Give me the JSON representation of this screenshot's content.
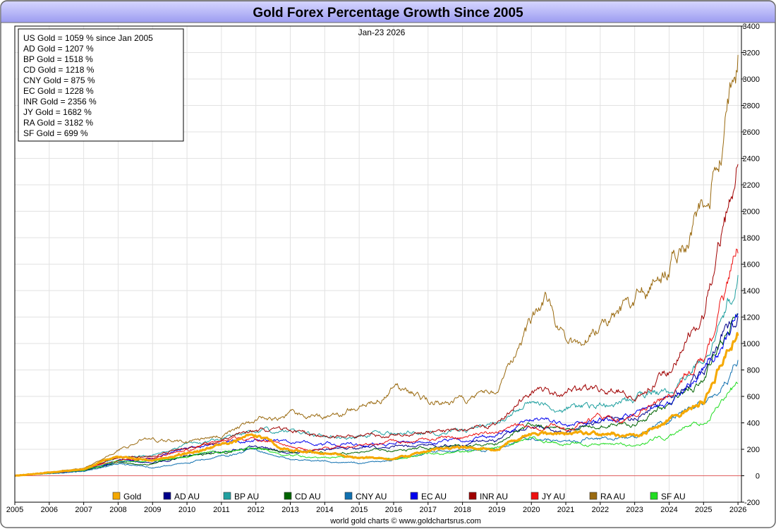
{
  "chart_data": {
    "type": "line",
    "title": "Gold Forex Percentage Growth Since 2005",
    "date_label": "Jan-23  2026",
    "footer": "world gold charts © www.goldchartsrus.com",
    "xlabel": "",
    "ylabel": "",
    "xlim": [
      2005,
      2026.1
    ],
    "ylim": [
      -200,
      3400
    ],
    "y_ticks": [
      -200,
      0,
      200,
      400,
      600,
      800,
      1000,
      1200,
      1400,
      1600,
      1800,
      2000,
      2200,
      2400,
      2600,
      2800,
      3000,
      3200,
      3400
    ],
    "x_ticks": [
      2005,
      2006,
      2007,
      2008,
      2009,
      2010,
      2011,
      2012,
      2013,
      2014,
      2015,
      2016,
      2017,
      2018,
      2019,
      2020,
      2021,
      2022,
      2023,
      2024,
      2025,
      2026
    ],
    "grid": true,
    "summary": [
      "US Gold = 1059 % since Jan 2005",
      "AD Gold = 1207 %",
      "BP Gold = 1518 %",
      "CD Gold = 1218 %",
      "CNY Gold = 875 %",
      "EC Gold = 1228 %",
      "INR Gold = 2356 %",
      "JY Gold = 1682 %",
      "RA Gold = 3182 %",
      "SF Gold = 699 %"
    ],
    "legend_position": "bottom",
    "series": [
      {
        "name": "Gold",
        "color": "#f5a800",
        "width": 3,
        "points": [
          [
            2005,
            0
          ],
          [
            2006,
            25
          ],
          [
            2007,
            50
          ],
          [
            2008,
            150
          ],
          [
            2009,
            110
          ],
          [
            2010,
            170
          ],
          [
            2011,
            240
          ],
          [
            2012,
            300
          ],
          [
            2013,
            190
          ],
          [
            2014,
            170
          ],
          [
            2015,
            140
          ],
          [
            2016,
            120
          ],
          [
            2017,
            190
          ],
          [
            2018,
            210
          ],
          [
            2019,
            210
          ],
          [
            2020,
            330
          ],
          [
            2021,
            310
          ],
          [
            2022,
            330
          ],
          [
            2023,
            300
          ],
          [
            2024,
            420
          ],
          [
            2025,
            560
          ],
          [
            2026,
            1059
          ]
        ]
      },
      {
        "name": "AD AU",
        "color": "#00008b",
        "width": 1,
        "points": [
          [
            2005,
            0
          ],
          [
            2006,
            20
          ],
          [
            2007,
            40
          ],
          [
            2008,
            120
          ],
          [
            2009,
            90
          ],
          [
            2010,
            150
          ],
          [
            2011,
            190
          ],
          [
            2012,
            220
          ],
          [
            2013,
            170
          ],
          [
            2014,
            200
          ],
          [
            2015,
            210
          ],
          [
            2016,
            220
          ],
          [
            2017,
            230
          ],
          [
            2018,
            240
          ],
          [
            2019,
            260
          ],
          [
            2020,
            390
          ],
          [
            2021,
            350
          ],
          [
            2022,
            420
          ],
          [
            2023,
            430
          ],
          [
            2024,
            580
          ],
          [
            2025,
            780
          ],
          [
            2026,
            1207
          ]
        ]
      },
      {
        "name": "BP AU",
        "color": "#20a0a0",
        "width": 1,
        "points": [
          [
            2005,
            0
          ],
          [
            2006,
            20
          ],
          [
            2007,
            45
          ],
          [
            2008,
            140
          ],
          [
            2009,
            150
          ],
          [
            2010,
            230
          ],
          [
            2011,
            290
          ],
          [
            2012,
            340
          ],
          [
            2013,
            330
          ],
          [
            2014,
            310
          ],
          [
            2015,
            300
          ],
          [
            2016,
            330
          ],
          [
            2017,
            330
          ],
          [
            2018,
            350
          ],
          [
            2019,
            410
          ],
          [
            2020,
            540
          ],
          [
            2021,
            500
          ],
          [
            2022,
            520
          ],
          [
            2023,
            570
          ],
          [
            2024,
            650
          ],
          [
            2025,
            900
          ],
          [
            2026,
            1518
          ]
        ]
      },
      {
        "name": "CD AU",
        "color": "#006400",
        "width": 1,
        "points": [
          [
            2005,
            0
          ],
          [
            2006,
            20
          ],
          [
            2007,
            35
          ],
          [
            2008,
            100
          ],
          [
            2009,
            85
          ],
          [
            2010,
            150
          ],
          [
            2011,
            180
          ],
          [
            2012,
            200
          ],
          [
            2013,
            180
          ],
          [
            2014,
            170
          ],
          [
            2015,
            180
          ],
          [
            2016,
            200
          ],
          [
            2017,
            210
          ],
          [
            2018,
            230
          ],
          [
            2019,
            250
          ],
          [
            2020,
            380
          ],
          [
            2021,
            350
          ],
          [
            2022,
            380
          ],
          [
            2023,
            400
          ],
          [
            2024,
            550
          ],
          [
            2025,
            760
          ],
          [
            2026,
            1218
          ]
        ]
      },
      {
        "name": "CNY AU",
        "color": "#1070b0",
        "width": 1,
        "points": [
          [
            2005,
            0
          ],
          [
            2006,
            15
          ],
          [
            2007,
            35
          ],
          [
            2008,
            95
          ],
          [
            2009,
            60
          ],
          [
            2010,
            100
          ],
          [
            2011,
            150
          ],
          [
            2012,
            190
          ],
          [
            2013,
            120
          ],
          [
            2014,
            110
          ],
          [
            2015,
            100
          ],
          [
            2016,
            120
          ],
          [
            2017,
            170
          ],
          [
            2018,
            190
          ],
          [
            2019,
            200
          ],
          [
            2020,
            300
          ],
          [
            2021,
            260
          ],
          [
            2022,
            280
          ],
          [
            2023,
            280
          ],
          [
            2024,
            420
          ],
          [
            2025,
            560
          ],
          [
            2026,
            875
          ]
        ]
      },
      {
        "name": "EC AU",
        "color": "#0000ee",
        "width": 1,
        "points": [
          [
            2005,
            0
          ],
          [
            2006,
            20
          ],
          [
            2007,
            40
          ],
          [
            2008,
            110
          ],
          [
            2009,
            130
          ],
          [
            2010,
            210
          ],
          [
            2011,
            250
          ],
          [
            2012,
            270
          ],
          [
            2013,
            250
          ],
          [
            2014,
            240
          ],
          [
            2015,
            240
          ],
          [
            2016,
            250
          ],
          [
            2017,
            260
          ],
          [
            2018,
            270
          ],
          [
            2019,
            300
          ],
          [
            2020,
            420
          ],
          [
            2021,
            400
          ],
          [
            2022,
            420
          ],
          [
            2023,
            440
          ],
          [
            2024,
            550
          ],
          [
            2025,
            780
          ],
          [
            2026,
            1228
          ]
        ]
      },
      {
        "name": "INR AU",
        "color": "#a00000",
        "width": 1,
        "points": [
          [
            2005,
            0
          ],
          [
            2006,
            20
          ],
          [
            2007,
            45
          ],
          [
            2008,
            140
          ],
          [
            2009,
            150
          ],
          [
            2010,
            210
          ],
          [
            2011,
            260
          ],
          [
            2012,
            350
          ],
          [
            2013,
            330
          ],
          [
            2014,
            300
          ],
          [
            2015,
            290
          ],
          [
            2016,
            330
          ],
          [
            2017,
            330
          ],
          [
            2018,
            340
          ],
          [
            2019,
            400
          ],
          [
            2020,
            650
          ],
          [
            2021,
            620
          ],
          [
            2022,
            650
          ],
          [
            2023,
            620
          ],
          [
            2024,
            780
          ],
          [
            2025,
            1300
          ],
          [
            2026,
            2356
          ]
        ]
      },
      {
        "name": "JY AU",
        "color": "#ee1010",
        "width": 1,
        "points": [
          [
            2005,
            0
          ],
          [
            2006,
            20
          ],
          [
            2007,
            40
          ],
          [
            2008,
            120
          ],
          [
            2009,
            130
          ],
          [
            2010,
            200
          ],
          [
            2011,
            260
          ],
          [
            2012,
            280
          ],
          [
            2013,
            210
          ],
          [
            2014,
            200
          ],
          [
            2015,
            220
          ],
          [
            2016,
            250
          ],
          [
            2017,
            280
          ],
          [
            2018,
            290
          ],
          [
            2019,
            320
          ],
          [
            2020,
            380
          ],
          [
            2021,
            360
          ],
          [
            2022,
            450
          ],
          [
            2023,
            430
          ],
          [
            2024,
            600
          ],
          [
            2025,
            900
          ],
          [
            2026,
            1682
          ]
        ]
      },
      {
        "name": "RA AU",
        "color": "#9a6a10",
        "width": 1,
        "points": [
          [
            2005,
            0
          ],
          [
            2006,
            25
          ],
          [
            2007,
            60
          ],
          [
            2008,
            200
          ],
          [
            2009,
            280
          ],
          [
            2010,
            250
          ],
          [
            2011,
            310
          ],
          [
            2012,
            420
          ],
          [
            2013,
            480
          ],
          [
            2014,
            420
          ],
          [
            2015,
            510
          ],
          [
            2016,
            650
          ],
          [
            2017,
            580
          ],
          [
            2018,
            580
          ],
          [
            2019,
            650
          ],
          [
            2020,
            1150
          ],
          [
            2020.5,
            1300
          ],
          [
            2021,
            1000
          ],
          [
            2021.5,
            950
          ],
          [
            2022,
            1100
          ],
          [
            2023,
            1300
          ],
          [
            2024,
            1550
          ],
          [
            2025,
            2050
          ],
          [
            2025.5,
            2500
          ],
          [
            2026,
            3182
          ]
        ]
      },
      {
        "name": "SF AU",
        "color": "#22dd22",
        "width": 1,
        "points": [
          [
            2005,
            0
          ],
          [
            2006,
            20
          ],
          [
            2007,
            40
          ],
          [
            2008,
            110
          ],
          [
            2009,
            110
          ],
          [
            2010,
            150
          ],
          [
            2011,
            180
          ],
          [
            2012,
            210
          ],
          [
            2013,
            150
          ],
          [
            2014,
            140
          ],
          [
            2015,
            140
          ],
          [
            2016,
            130
          ],
          [
            2017,
            170
          ],
          [
            2018,
            180
          ],
          [
            2019,
            200
          ],
          [
            2020,
            280
          ],
          [
            2021,
            240
          ],
          [
            2022,
            250
          ],
          [
            2023,
            240
          ],
          [
            2024,
            300
          ],
          [
            2025,
            420
          ],
          [
            2026,
            699
          ]
        ]
      }
    ]
  }
}
